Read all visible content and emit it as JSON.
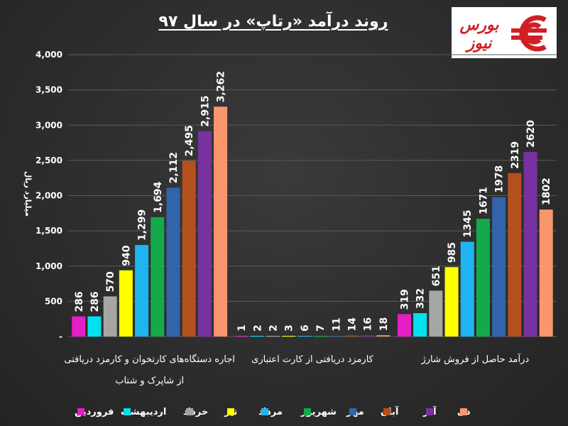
{
  "title": "روند درآمد «رتاپ» در سال ۹۷",
  "logo": {
    "text": "بورس نیوز",
    "color": "#d01f25"
  },
  "chart_data": {
    "type": "bar",
    "ylabel": "میلیارد ریال",
    "ylim": [
      0,
      4000
    ],
    "yticks": [
      "-",
      "500",
      "1,000",
      "1,500",
      "2,000",
      "2,500",
      "3,000",
      "3,500",
      "4,000"
    ],
    "categories": [
      "اجاره دستگاه‌های کارتخوان و کارمزد دریافتی از شاپرک و شتاب",
      "کارمزد دریافتی از کارت اعتباری",
      "درآمد حاصل از فروش شارژ"
    ],
    "category_lines": [
      [
        "اجاره دستگاه‌های کارتخوان و کارمزد دریافتی",
        "از شاپرک و شتاب"
      ],
      [
        "کارمزد دریافتی از کارت اعتباری"
      ],
      [
        "درآمد حاصل از فروش شارژ"
      ]
    ],
    "series": [
      {
        "name": "فروردین",
        "color": "#e61ec8",
        "values": [
          286,
          1,
          319
        ],
        "labels": [
          "286",
          "1",
          "319"
        ]
      },
      {
        "name": "اردیبهشت",
        "color": "#00e1f0",
        "values": [
          286,
          2,
          332
        ],
        "labels": [
          "286",
          "2",
          "332"
        ]
      },
      {
        "name": "خرداد",
        "color": "#a6a6a6",
        "values": [
          570,
          2,
          651
        ],
        "labels": [
          "570",
          "2",
          "651"
        ]
      },
      {
        "name": "تیر",
        "color": "#ffff00",
        "values": [
          940,
          3,
          985
        ],
        "labels": [
          "940",
          "3",
          "985"
        ]
      },
      {
        "name": "مرداد",
        "color": "#1eb4f0",
        "values": [
          1299,
          6,
          1345
        ],
        "labels": [
          "1,299",
          "6",
          "1345"
        ]
      },
      {
        "name": "شهریور",
        "color": "#14aa4b",
        "values": [
          1694,
          7,
          1671
        ],
        "labels": [
          "1,694",
          "7",
          "1671"
        ]
      },
      {
        "name": "مهر",
        "color": "#3264aa",
        "values": [
          2112,
          11,
          1978
        ],
        "labels": [
          "2,112",
          "11",
          "1978"
        ]
      },
      {
        "name": "آبان",
        "color": "#b4501e",
        "values": [
          2495,
          14,
          2319
        ],
        "labels": [
          "2,495",
          "14",
          "2319"
        ]
      },
      {
        "name": "آذر",
        "color": "#7832a0",
        "values": [
          2915,
          16,
          2620
        ],
        "labels": [
          "2,915",
          "16",
          "2620"
        ]
      },
      {
        "name": "دی",
        "color": "#fa966e",
        "values": [
          3262,
          18,
          1802
        ],
        "labels": [
          "3,262",
          "18",
          "1802"
        ]
      }
    ],
    "legend": "bottom",
    "grid": true
  }
}
